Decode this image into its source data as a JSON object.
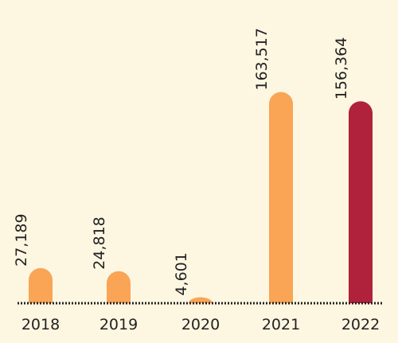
{
  "chart_data": {
    "type": "bar",
    "categories": [
      "2018",
      "2019",
      "2020",
      "2021",
      "2022"
    ],
    "values": [
      27189,
      24818,
      4601,
      163517,
      156364
    ],
    "value_labels": [
      "27,189",
      "24,818",
      "4,601",
      "163,517",
      "156,364"
    ],
    "title": "",
    "xlabel": "",
    "ylabel": "",
    "ylim": [
      0,
      175000
    ],
    "grid": false,
    "legend": "none",
    "colors": {
      "background": "#fdf6e1",
      "default_bar": "#f9a555",
      "highlight_bar": "#b0213b",
      "baseline": "#222222",
      "text": "#222222"
    },
    "highlight_index": 4
  }
}
